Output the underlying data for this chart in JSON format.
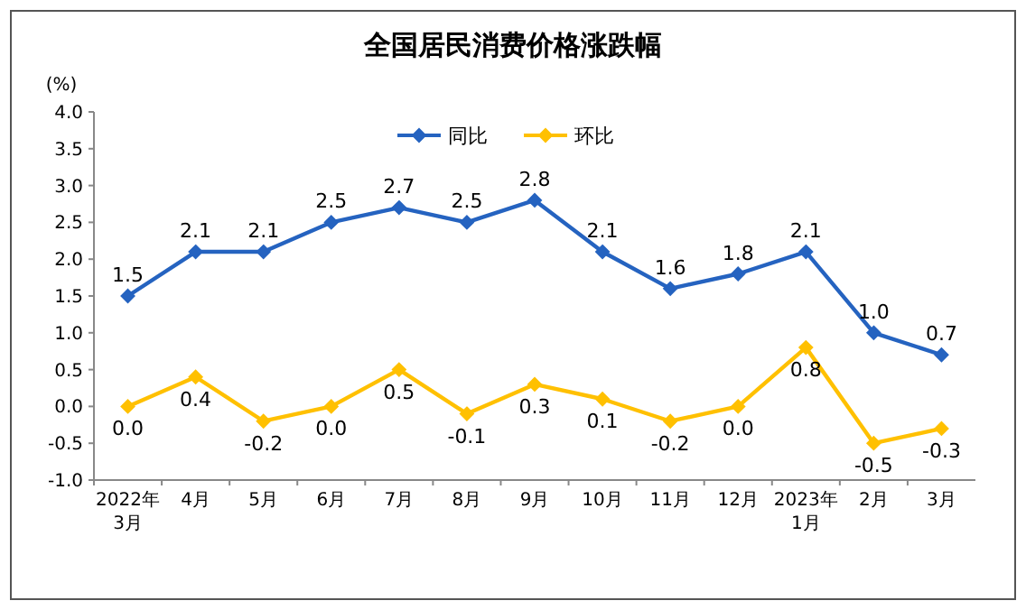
{
  "chart_data": {
    "type": "line",
    "title": "全国居民消费价格涨跌幅",
    "ylabel": "(%)",
    "categories": [
      "2022年\n3月",
      "4月",
      "5月",
      "6月",
      "7月",
      "8月",
      "9月",
      "10月",
      "11月",
      "12月",
      "2023年\n1月",
      "2月",
      "3月"
    ],
    "ylim": [
      -1.0,
      4.0
    ],
    "yticks": [
      {
        "value": -1.0,
        "label": "-1.0"
      },
      {
        "value": -0.5,
        "label": "-0.5"
      },
      {
        "value": 0,
        "label": "0.0"
      },
      {
        "value": 0.5,
        "label": "0.5"
      },
      {
        "value": 1.0,
        "label": "1.0"
      },
      {
        "value": 1.5,
        "label": "1.5"
      },
      {
        "value": 2.0,
        "label": "2.0"
      },
      {
        "value": 2.5,
        "label": "2.5"
      },
      {
        "value": 3.0,
        "label": "3.0"
      },
      {
        "value": 3.5,
        "label": "3.5"
      },
      {
        "value": 4.0,
        "label": "4.0"
      }
    ],
    "marker": "diamond",
    "legend": "top",
    "grid": false,
    "series": [
      {
        "name": "同比",
        "color": "#2563c0",
        "values": [
          1.5,
          2.1,
          2.1,
          2.5,
          2.7,
          2.5,
          2.8,
          2.1,
          1.6,
          1.8,
          2.1,
          1.0,
          0.7
        ],
        "value_labels": [
          "1.5",
          "2.1",
          "2.1",
          "2.5",
          "2.7",
          "2.5",
          "2.8",
          "2.1",
          "1.6",
          "1.8",
          "2.1",
          "1.0",
          "0.7"
        ]
      },
      {
        "name": "环比",
        "color": "#ffc000",
        "values": [
          0.0,
          0.4,
          -0.2,
          0.0,
          0.5,
          -0.1,
          0.3,
          0.1,
          -0.2,
          0.0,
          0.8,
          -0.5,
          -0.3
        ],
        "value_labels": [
          "0.0",
          "0.4",
          "-0.2",
          "0.0",
          "0.5",
          "-0.1",
          "0.3",
          "0.1",
          "-0.2",
          "0.0",
          "0.8",
          "-0.5",
          "-0.3"
        ]
      }
    ]
  }
}
